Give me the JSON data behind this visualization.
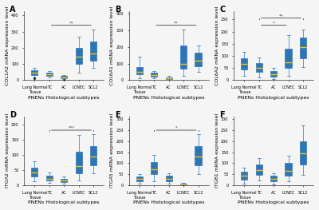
{
  "panels": [
    {
      "label": "A",
      "ylabel": "COL1A2 mRNA expression level",
      "sig_lines": [
        [
          "TC",
          "SCL2",
          "**"
        ]
      ],
      "groups": [
        "Lung Normal\nTissue",
        "TC",
        "AC",
        "LCNEC",
        "SCL2"
      ],
      "boxes": [
        {
          "q1": 30,
          "median": 45,
          "q3": 60,
          "whislo": 18,
          "whishi": 75,
          "fliers": [
            10,
            12
          ]
        },
        {
          "q1": 25,
          "median": 35,
          "q3": 48,
          "whislo": 15,
          "whishi": 58,
          "fliers": []
        },
        {
          "q1": 10,
          "median": 18,
          "q3": 25,
          "whislo": 5,
          "whishi": 32,
          "fliers": [
            3
          ]
        },
        {
          "q1": 100,
          "median": 145,
          "q3": 200,
          "whislo": 45,
          "whishi": 270,
          "fliers": []
        },
        {
          "q1": 120,
          "median": 165,
          "q3": 240,
          "whislo": 75,
          "whishi": 315,
          "fliers": []
        }
      ]
    },
    {
      "label": "B",
      "ylabel": "COL6A1 mRNA expression level",
      "sig_lines": [
        [
          "TC",
          "SCL2",
          "**"
        ]
      ],
      "groups": [
        "Lung Normal\nTissue",
        "TC",
        "AC",
        "LCNEC",
        "SCL2"
      ],
      "boxes": [
        {
          "q1": 35,
          "median": 52,
          "q3": 80,
          "whislo": 10,
          "whishi": 140,
          "fliers": []
        },
        {
          "q1": 22,
          "median": 32,
          "q3": 44,
          "whislo": 12,
          "whishi": 55,
          "fliers": []
        },
        {
          "q1": 5,
          "median": 12,
          "q3": 18,
          "whislo": 2,
          "whishi": 25,
          "fliers": []
        },
        {
          "q1": 70,
          "median": 100,
          "q3": 210,
          "whislo": 25,
          "whishi": 305,
          "fliers": []
        },
        {
          "q1": 85,
          "median": 115,
          "q3": 165,
          "whislo": 50,
          "whishi": 210,
          "fliers": []
        }
      ]
    },
    {
      "label": "C",
      "ylabel": "COL6A2 mRNA expression level",
      "sig_lines": [
        [
          "TC",
          "LCNEC",
          "*"
        ],
        [
          "TC",
          "SCL2",
          "**"
        ]
      ],
      "groups": [
        "Lung Normal\nTissue",
        "TC",
        "AC",
        "LCNEC",
        "SCL2"
      ],
      "boxes": [
        {
          "q1": 45,
          "median": 68,
          "q3": 90,
          "whislo": 18,
          "whishi": 115,
          "fliers": []
        },
        {
          "q1": 35,
          "median": 52,
          "q3": 72,
          "whislo": 12,
          "whishi": 92,
          "fliers": []
        },
        {
          "q1": 15,
          "median": 25,
          "q3": 38,
          "whislo": 6,
          "whishi": 50,
          "fliers": []
        },
        {
          "q1": 50,
          "median": 75,
          "q3": 130,
          "whislo": 18,
          "whishi": 185,
          "fliers": []
        },
        {
          "q1": 90,
          "median": 135,
          "q3": 175,
          "whislo": 55,
          "whishi": 210,
          "fliers": []
        }
      ]
    },
    {
      "label": "D",
      "ylabel": "ITGA2 mRNA expression level",
      "sig_lines": [
        [
          "TC",
          "SCL2",
          "***"
        ]
      ],
      "groups": [
        "Lung Normal\nTissue",
        "TC",
        "AC",
        "LCNEC",
        "SCL2"
      ],
      "boxes": [
        {
          "q1": 28,
          "median": 42,
          "q3": 58,
          "whislo": 12,
          "whishi": 78,
          "fliers": []
        },
        {
          "q1": 15,
          "median": 22,
          "q3": 32,
          "whislo": 8,
          "whishi": 42,
          "fliers": []
        },
        {
          "q1": 10,
          "median": 16,
          "q3": 22,
          "whislo": 4,
          "whishi": 30,
          "fliers": []
        },
        {
          "q1": 38,
          "median": 62,
          "q3": 110,
          "whislo": 15,
          "whishi": 165,
          "fliers": []
        },
        {
          "q1": 65,
          "median": 95,
          "q3": 130,
          "whislo": 38,
          "whishi": 168,
          "fliers": []
        }
      ]
    },
    {
      "label": "E",
      "ylabel": "ITGA5 mRNA expression level",
      "sig_lines": [
        [
          "TC",
          "SCL2",
          "*"
        ]
      ],
      "groups": [
        "Lung Normal\nTissue",
        "TC",
        "AC",
        "LCNEC",
        "SCL2"
      ],
      "boxes": [
        {
          "q1": 18,
          "median": 28,
          "q3": 40,
          "whislo": 8,
          "whishi": 52,
          "fliers": []
        },
        {
          "q1": 50,
          "median": 72,
          "q3": 105,
          "whislo": 18,
          "whishi": 138,
          "fliers": []
        },
        {
          "q1": 18,
          "median": 28,
          "q3": 42,
          "whislo": 8,
          "whishi": 55,
          "fliers": []
        },
        {
          "q1": 2,
          "median": 5,
          "q3": 8,
          "whislo": 1,
          "whishi": 12,
          "fliers": [
            -5
          ]
        },
        {
          "q1": 90,
          "median": 130,
          "q3": 178,
          "whislo": 50,
          "whishi": 232,
          "fliers": []
        }
      ]
    },
    {
      "label": "F",
      "ylabel": "ITGB1 mRNA expression level",
      "sig_lines": [],
      "groups": [
        "Lung Normal\nTissue",
        "TC",
        "AC",
        "LCNEC",
        "SCL2"
      ],
      "boxes": [
        {
          "q1": 25,
          "median": 42,
          "q3": 62,
          "whislo": 8,
          "whishi": 80,
          "fliers": []
        },
        {
          "q1": 48,
          "median": 68,
          "q3": 95,
          "whislo": 20,
          "whishi": 122,
          "fliers": []
        },
        {
          "q1": 18,
          "median": 28,
          "q3": 42,
          "whislo": 4,
          "whishi": 55,
          "fliers": []
        },
        {
          "q1": 45,
          "median": 65,
          "q3": 100,
          "whislo": 18,
          "whishi": 135,
          "fliers": []
        },
        {
          "q1": 95,
          "median": 145,
          "q3": 198,
          "whislo": 48,
          "whishi": 272,
          "fliers": []
        }
      ]
    }
  ],
  "box_color": "#5B9BD5",
  "box_edge_color": "#2E75B6",
  "median_color": "#FFC000",
  "whisker_color": "#2E75B6",
  "cap_color": "#2E75B6",
  "flier_color": "#2E75B6",
  "sig_line_color": "#444444",
  "background_color": "#f5f5f5",
  "xlabel": "PNENs Histological subtypes",
  "tick_fontsize": 3.5,
  "label_fontsize": 4.5,
  "panel_label_fontsize": 7
}
